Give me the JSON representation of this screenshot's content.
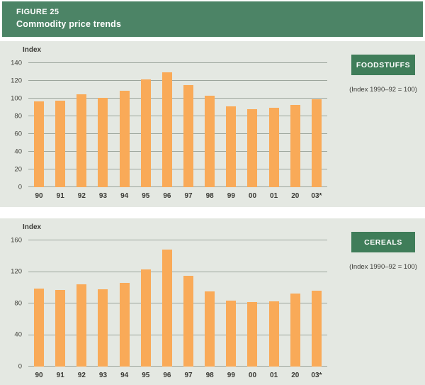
{
  "header": {
    "figure_label": "FIGURE 25",
    "title": "Commodity price trends"
  },
  "colors": {
    "header_green": "#4c8466",
    "badge_green": "#3f7d59",
    "panel_bg": "#e4e8e2",
    "bar_orange": "#f9aa58",
    "gridline": "#9ca59c",
    "text": "#3c3c38"
  },
  "chart_data": [
    {
      "type": "bar",
      "title": "FOODSTUFFS",
      "note": "(Index 1990–92 = 100)",
      "ylabel": "Index",
      "xlabel": "",
      "categories": [
        "90",
        "91",
        "92",
        "93",
        "94",
        "95",
        "96",
        "97",
        "98",
        "99",
        "00",
        "01",
        "20",
        "03*"
      ],
      "values": [
        97,
        98,
        105,
        101,
        109,
        122,
        130,
        115,
        103,
        91,
        88,
        90,
        93,
        99
      ],
      "ylim": [
        0,
        140
      ],
      "yticks": [
        0,
        20,
        40,
        60,
        80,
        100,
        120,
        140
      ],
      "grid": true,
      "legend": "none",
      "bar_color": "#f9aa58"
    },
    {
      "type": "bar",
      "title": "CEREALS",
      "note": "(Index 1990–92 = 100)",
      "ylabel": "Index",
      "xlabel": "",
      "categories": [
        "90",
        "91",
        "92",
        "93",
        "94",
        "95",
        "96",
        "97",
        "98",
        "99",
        "00",
        "01",
        "20",
        "03*"
      ],
      "values": [
        99,
        97,
        104,
        98,
        106,
        123,
        148,
        115,
        95,
        84,
        82,
        83,
        93,
        96
      ],
      "ylim": [
        0,
        160
      ],
      "yticks": [
        0,
        40,
        80,
        120,
        160
      ],
      "grid": true,
      "legend": "none",
      "bar_color": "#f9aa58"
    }
  ]
}
